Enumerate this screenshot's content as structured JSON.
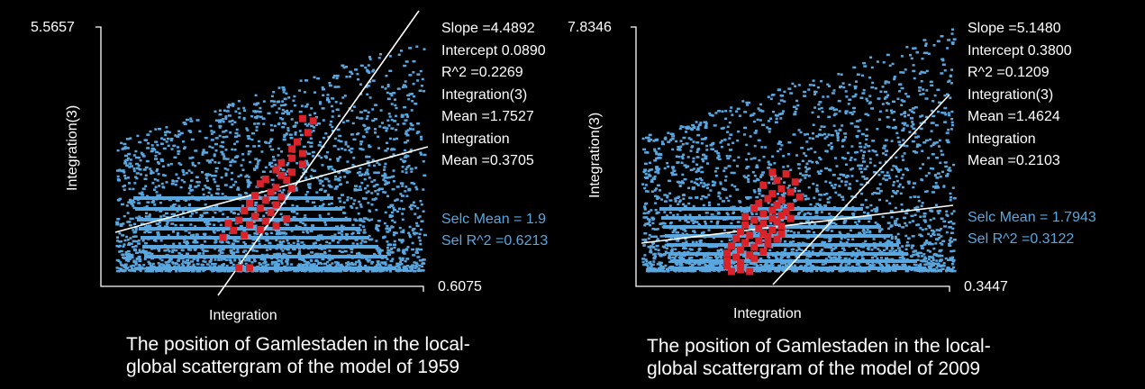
{
  "colors": {
    "background": "#000000",
    "points": "#5aa7df",
    "selection": "#d9232a",
    "lines": "#ffffff",
    "selStats": "#5aa7df"
  },
  "chart_data": [
    {
      "type": "scatter",
      "xlabel": "Integration",
      "ylabel": "Integration(3)",
      "x_max_label": "0.6075",
      "y_max_label": "5.5657",
      "stats": [
        "Slope =4.4892",
        "Intercept 0.0890",
        "R^2 =0.2269",
        "Integration(3)",
        "Mean =1.7527",
        "Integration",
        "Mean =0.3705"
      ],
      "sel_stats": [
        "Selc Mean = 1.9",
        "Sel R^2 =0.6213"
      ],
      "caption": [
        "The position of Gamlestaden in the local-",
        "global scattergram of the model of 1959"
      ],
      "selection_points": [
        [
          0.38,
          3.6
        ],
        [
          0.4,
          3.55
        ],
        [
          0.39,
          3.3
        ],
        [
          0.37,
          3.1
        ],
        [
          0.36,
          2.95
        ],
        [
          0.38,
          2.85
        ],
        [
          0.36,
          2.75
        ],
        [
          0.34,
          2.65
        ],
        [
          0.38,
          2.62
        ],
        [
          0.33,
          2.5
        ],
        [
          0.36,
          2.45
        ],
        [
          0.34,
          2.38
        ],
        [
          0.31,
          2.3
        ],
        [
          0.35,
          2.28
        ],
        [
          0.3,
          2.2
        ],
        [
          0.33,
          2.12
        ],
        [
          0.36,
          2.1
        ],
        [
          0.32,
          2.02
        ],
        [
          0.29,
          1.95
        ],
        [
          0.34,
          1.92
        ],
        [
          0.31,
          1.85
        ],
        [
          0.28,
          1.78
        ],
        [
          0.33,
          1.75
        ],
        [
          0.3,
          1.68
        ],
        [
          0.27,
          1.62
        ],
        [
          0.32,
          1.58
        ],
        [
          0.29,
          1.5
        ],
        [
          0.26,
          1.42
        ],
        [
          0.31,
          1.4
        ],
        [
          0.24,
          1.35
        ],
        [
          0.28,
          1.32
        ],
        [
          0.35,
          1.45
        ],
        [
          0.25,
          1.2
        ],
        [
          0.3,
          1.22
        ],
        [
          0.33,
          1.3
        ],
        [
          0.27,
          1.1
        ],
        [
          0.23,
          1.05
        ],
        [
          0.26,
          0.4
        ],
        [
          0.28,
          0.4
        ]
      ]
    },
    {
      "type": "scatter",
      "xlabel": "Integration",
      "ylabel": "Integration(3)",
      "x_max_label": "0.3447",
      "y_max_label": "7.8346",
      "stats": [
        "Slope =5.1480",
        "Intercept 0.3800",
        "R^2 =0.1209",
        "Integration(3)",
        "Mean =1.4624",
        "Integration",
        "Mean =0.2103"
      ],
      "sel_stats": [
        "Selc Mean = 1.7943",
        "Sel R^2 =0.3122"
      ],
      "caption": [
        "The position of Gamlestaden in the local-",
        "global scattergram of the model of 2009"
      ],
      "selection_points": [
        [
          0.15,
          3.45
        ],
        [
          0.165,
          3.4
        ],
        [
          0.155,
          3.2
        ],
        [
          0.175,
          3.15
        ],
        [
          0.14,
          3.05
        ],
        [
          0.16,
          2.95
        ],
        [
          0.17,
          2.85
        ],
        [
          0.15,
          2.8
        ],
        [
          0.18,
          2.7
        ],
        [
          0.145,
          2.65
        ],
        [
          0.16,
          2.6
        ],
        [
          0.135,
          2.5
        ],
        [
          0.155,
          2.45
        ],
        [
          0.17,
          2.42
        ],
        [
          0.13,
          2.35
        ],
        [
          0.15,
          2.3
        ],
        [
          0.165,
          2.25
        ],
        [
          0.14,
          2.2
        ],
        [
          0.16,
          2.15
        ],
        [
          0.12,
          2.1
        ],
        [
          0.15,
          2.05
        ],
        [
          0.17,
          2.05
        ],
        [
          0.13,
          2.0
        ],
        [
          0.155,
          1.95
        ],
        [
          0.14,
          1.9
        ],
        [
          0.12,
          1.85
        ],
        [
          0.16,
          1.82
        ],
        [
          0.135,
          1.75
        ],
        [
          0.15,
          1.7
        ],
        [
          0.115,
          1.65
        ],
        [
          0.14,
          1.6
        ],
        [
          0.16,
          1.58
        ],
        [
          0.125,
          1.55
        ],
        [
          0.145,
          1.5
        ],
        [
          0.11,
          1.45
        ],
        [
          0.155,
          1.42
        ],
        [
          0.135,
          1.38
        ],
        [
          0.12,
          1.32
        ],
        [
          0.145,
          1.28
        ],
        [
          0.105,
          1.22
        ],
        [
          0.13,
          1.18
        ],
        [
          0.115,
          1.1
        ],
        [
          0.14,
          1.05
        ],
        [
          0.1,
          1.0
        ],
        [
          0.125,
          0.95
        ],
        [
          0.11,
          0.88
        ],
        [
          0.13,
          0.85
        ],
        [
          0.1,
          0.78
        ],
        [
          0.115,
          0.7
        ],
        [
          0.1,
          0.62
        ],
        [
          0.115,
          0.5
        ],
        [
          0.105,
          0.45
        ],
        [
          0.125,
          0.45
        ]
      ]
    }
  ]
}
